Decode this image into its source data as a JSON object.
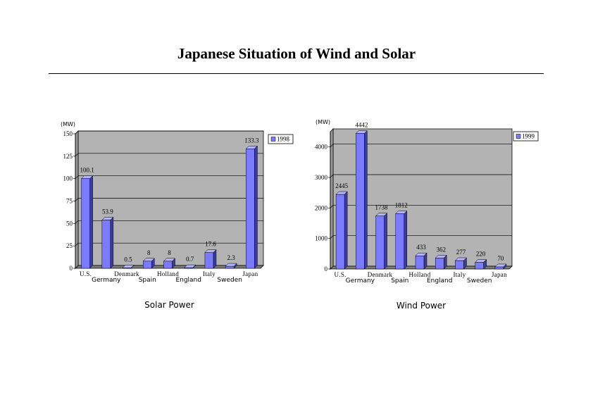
{
  "page": {
    "title": "Japanese Situation of Wind and Solar"
  },
  "chart_data": [
    {
      "type": "bar",
      "caption": "Solar Power",
      "unit": "(MW)",
      "categories": [
        "U.S.",
        "Germany",
        "Denmark",
        "Spain",
        "Holland",
        "England",
        "Italy",
        "Sweden",
        "Japan"
      ],
      "series": [
        {
          "name": "1998",
          "values": [
            100.1,
            53.9,
            0.5,
            8,
            8,
            0.7,
            17.6,
            2.3,
            133.3
          ]
        }
      ],
      "data_labels": [
        "100.1",
        "53.9",
        "0.5",
        "8",
        "8",
        "0.7",
        "17.6",
        "2.3",
        "133.3"
      ],
      "ylim": [
        0,
        150
      ],
      "yticks": [
        0,
        25,
        50,
        75,
        100,
        125,
        150
      ],
      "grid": true,
      "legend": "top-right",
      "colors": {
        "bar_front": "#7b7bff",
        "bar_top": "#b4b4ff",
        "bar_side": "#3c3c9c",
        "plot_bg": "#b3b3b3",
        "floor": "#7c7c7c"
      }
    },
    {
      "type": "bar",
      "caption": "Wind Power",
      "unit": "(MW)",
      "categories": [
        "U.S.",
        "Germany",
        "Denmark",
        "Spain",
        "Holland",
        "England",
        "Italy",
        "Sweden",
        "Japan"
      ],
      "series": [
        {
          "name": "1999",
          "values": [
            2445,
            4442,
            1738,
            1812,
            433,
            362,
            277,
            220,
            70
          ]
        }
      ],
      "data_labels": [
        "2445",
        "4442",
        "1738",
        "1812",
        "433",
        "362",
        "277",
        "220",
        "70"
      ],
      "ylim": [
        0,
        4500
      ],
      "yticks": [
        0,
        1000,
        2000,
        3000,
        4000
      ],
      "grid": true,
      "legend": "top-right",
      "colors": {
        "bar_front": "#7b7bff",
        "bar_top": "#b4b4ff",
        "bar_side": "#3c3c9c",
        "plot_bg": "#b3b3b3",
        "floor": "#7c7c7c"
      }
    }
  ]
}
